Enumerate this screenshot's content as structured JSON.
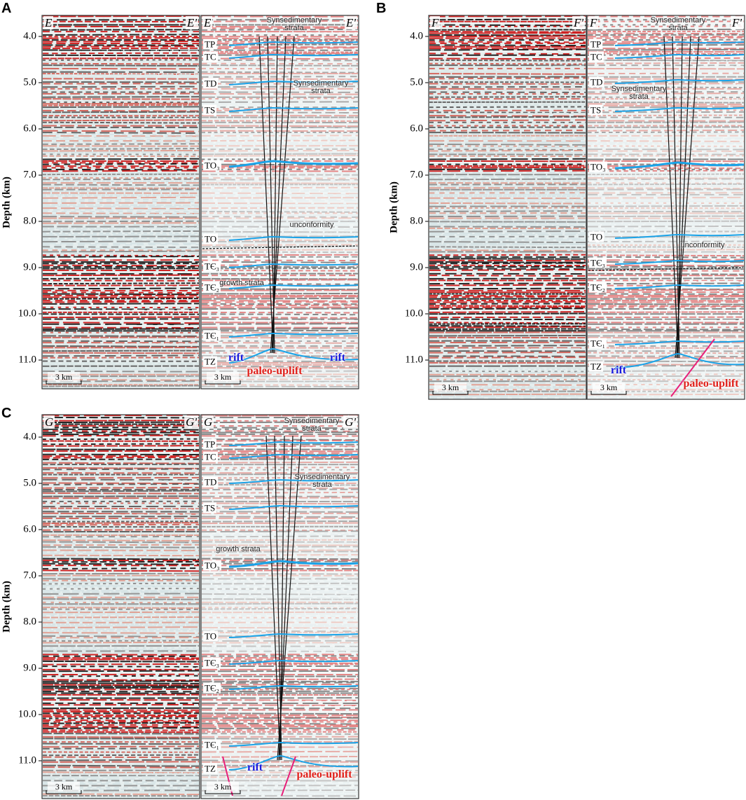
{
  "panels": [
    {
      "letter": "A",
      "axis_title": "Depth (km)",
      "depth_ticks": [
        "4.0",
        "5.0",
        "6.0",
        "7.0",
        "8.0",
        "9.0",
        "10.0",
        "11.0"
      ],
      "seismic": {
        "start": "E",
        "end": "E'",
        "scale": "3 km"
      },
      "interpreted": {
        "start": "E",
        "end": "E'",
        "scale": "3 km",
        "horizons": [
          "TP",
          "TC",
          "TD",
          "TS",
          "TO₃",
          "TO",
          "TЄ₃",
          "TЄ₂",
          "TЄ₁",
          "TZ"
        ],
        "annotations": [
          "Synsedimentary strata",
          "Synsedimentary strata",
          "unconformity",
          "growth strata",
          "rift",
          "rift",
          "paleo-uplift"
        ]
      }
    },
    {
      "letter": "B",
      "axis_title": "Depth (km)",
      "depth_ticks": [
        "4.0",
        "5.0",
        "6.0",
        "7.0",
        "8.0",
        "9.0",
        "10.0",
        "11.0"
      ],
      "seismic": {
        "start": "F",
        "end": "F'",
        "scale": "3 km"
      },
      "interpreted": {
        "start": "F",
        "end": "F'",
        "scale": "3 km",
        "horizons": [
          "TP",
          "TC",
          "TD",
          "TS",
          "TO₃",
          "TO",
          "TЄ₃",
          "TЄ₂",
          "TЄ₁",
          "TZ"
        ],
        "annotations": [
          "Synsedimentary strata",
          "Synsedimentary strata",
          "unconformity",
          "rift",
          "paleo-uplift"
        ]
      }
    },
    {
      "letter": "C",
      "axis_title": "Depth (km)",
      "depth_ticks": [
        "4.0",
        "5.0",
        "6.0",
        "7.0",
        "8.0",
        "9.0",
        "10.0",
        "11.0"
      ],
      "seismic": {
        "start": "G",
        "end": "G'",
        "scale": "3 km"
      },
      "interpreted": {
        "start": "G",
        "end": "G'",
        "scale": "3 km",
        "horizons": [
          "TP",
          "TC",
          "TD",
          "TS",
          "TO₃",
          "TO",
          "TЄ₃",
          "TЄ₂",
          "TЄ₁",
          "TZ"
        ],
        "annotations": [
          "Synsedimentary strata",
          "Synsedimentary strata",
          "growth strata",
          "rift",
          "paleo-uplift"
        ]
      }
    }
  ]
}
